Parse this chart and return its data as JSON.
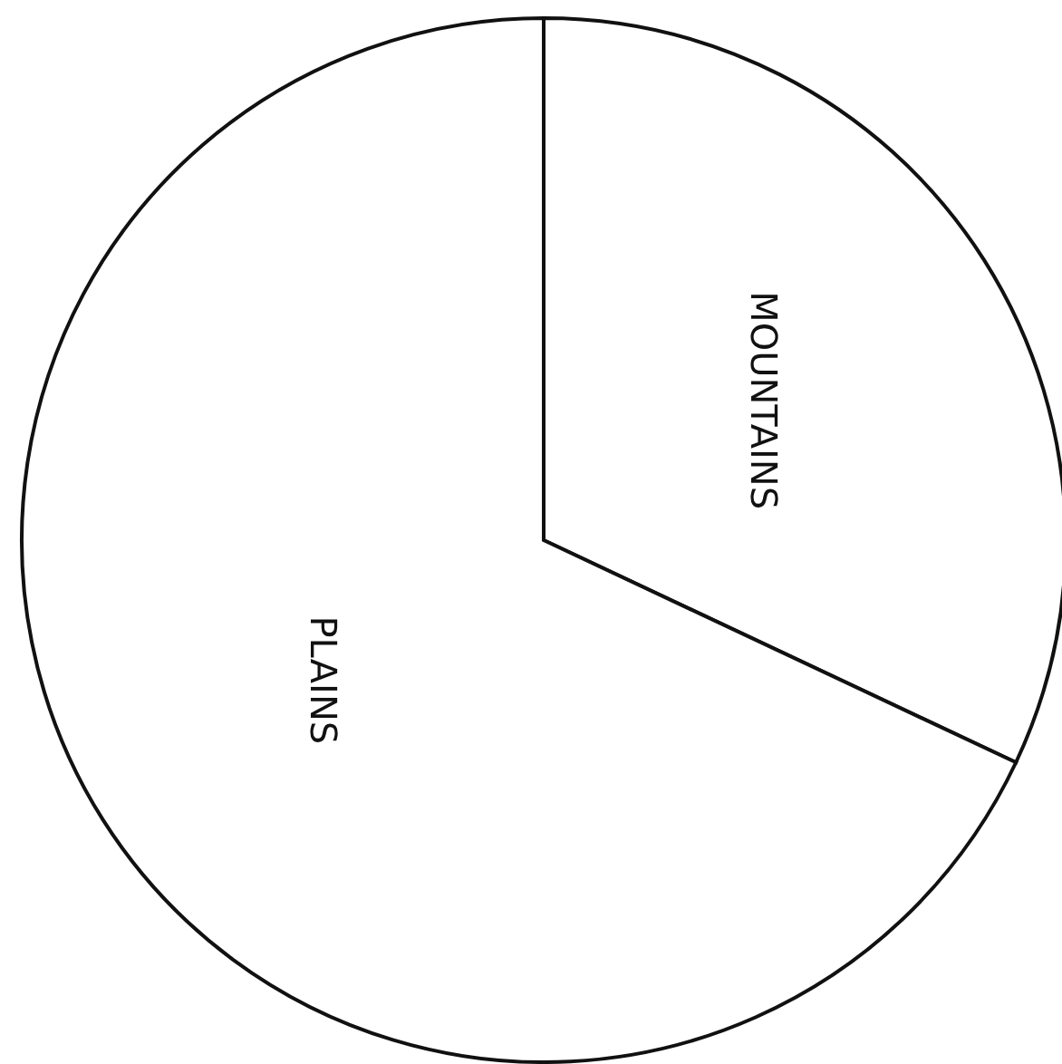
{
  "chart_data": {
    "type": "pie",
    "categories": [
      "MOUNTAINS",
      "PLAINS"
    ],
    "values": [
      32,
      68
    ],
    "colors": [
      "#ffffff",
      "#ffffff"
    ]
  }
}
